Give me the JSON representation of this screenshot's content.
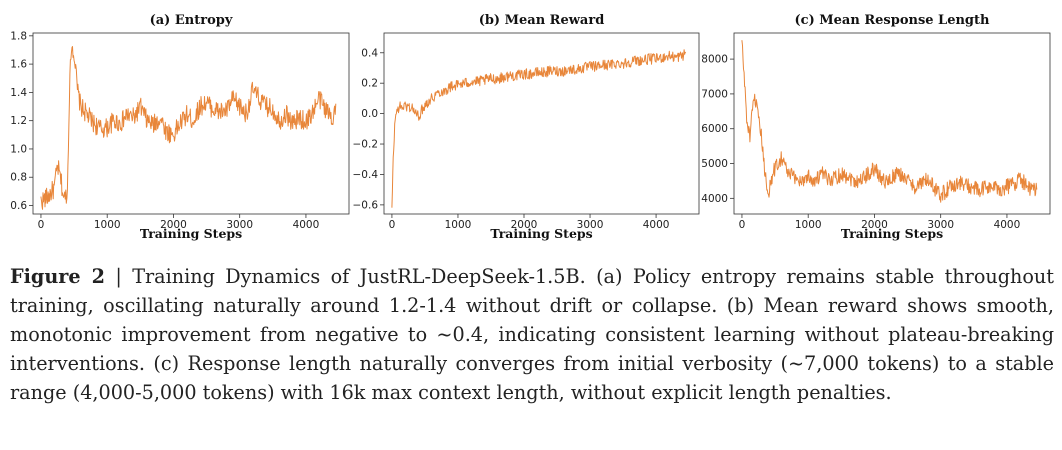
{
  "chart_data": [
    {
      "type": "line",
      "title": "(a) Entropy",
      "xlabel": "Training Steps",
      "ylabel": "",
      "xlim": [
        -120,
        4650
      ],
      "ylim": [
        0.54,
        1.82
      ],
      "x_ticks": [
        0,
        1000,
        2000,
        3000,
        4000
      ],
      "y_ticks": [
        0.6,
        0.8,
        1.0,
        1.2,
        1.4,
        1.6,
        1.8
      ],
      "y_tick_labels": [
        "0.6",
        "0.8",
        "1.0",
        "1.2",
        "1.4",
        "1.6",
        "1.8"
      ],
      "series": [
        {
          "name": "entropy",
          "color": "#e8863a",
          "x": [
            0,
            100,
            200,
            250,
            300,
            350,
            400,
            430,
            460,
            500,
            550,
            600,
            700,
            800,
            900,
            1000,
            1100,
            1200,
            1300,
            1400,
            1500,
            1600,
            1700,
            1800,
            1900,
            2000,
            2100,
            2200,
            2300,
            2400,
            2500,
            2600,
            2700,
            2800,
            2900,
            3000,
            3100,
            3200,
            3300,
            3400,
            3500,
            3600,
            3700,
            3800,
            3900,
            4000,
            4100,
            4200,
            4300,
            4400,
            4450
          ],
          "values": [
            0.63,
            0.66,
            0.72,
            0.88,
            0.78,
            0.64,
            0.7,
            1.4,
            1.74,
            1.68,
            1.42,
            1.3,
            1.24,
            1.18,
            1.14,
            1.15,
            1.2,
            1.18,
            1.24,
            1.22,
            1.3,
            1.2,
            1.17,
            1.22,
            1.12,
            1.1,
            1.18,
            1.24,
            1.2,
            1.3,
            1.33,
            1.28,
            1.26,
            1.27,
            1.35,
            1.3,
            1.25,
            1.42,
            1.35,
            1.3,
            1.28,
            1.2,
            1.25,
            1.18,
            1.22,
            1.19,
            1.26,
            1.36,
            1.28,
            1.22,
            1.32
          ]
        }
      ]
    },
    {
      "type": "line",
      "title": "(b) Mean Reward",
      "xlabel": "Training Steps",
      "ylabel": "",
      "xlim": [
        -120,
        4650
      ],
      "ylim": [
        -0.66,
        0.53
      ],
      "x_ticks": [
        0,
        1000,
        2000,
        3000,
        4000
      ],
      "y_ticks": [
        -0.6,
        -0.4,
        -0.2,
        0.0,
        0.2,
        0.4
      ],
      "y_tick_labels": [
        "−0.6",
        "−0.4",
        "−0.2",
        "0.0",
        "0.2",
        "0.4"
      ],
      "series": [
        {
          "name": "mean reward",
          "color": "#e8863a",
          "x": [
            0,
            20,
            50,
            100,
            200,
            300,
            400,
            500,
            600,
            700,
            800,
            900,
            1000,
            1100,
            1200,
            1300,
            1400,
            1500,
            1600,
            1700,
            1800,
            1900,
            2000,
            2100,
            2200,
            2300,
            2400,
            2500,
            2600,
            2700,
            2800,
            2900,
            3000,
            3100,
            3200,
            3300,
            3400,
            3500,
            3600,
            3700,
            3800,
            3900,
            4000,
            4100,
            4200,
            4300,
            4400,
            4450
          ],
          "values": [
            -0.63,
            -0.3,
            -0.02,
            0.04,
            0.05,
            0.04,
            -0.02,
            0.06,
            0.1,
            0.14,
            0.15,
            0.18,
            0.19,
            0.2,
            0.21,
            0.21,
            0.22,
            0.23,
            0.23,
            0.24,
            0.25,
            0.25,
            0.26,
            0.26,
            0.27,
            0.27,
            0.28,
            0.28,
            0.28,
            0.29,
            0.29,
            0.3,
            0.31,
            0.31,
            0.32,
            0.32,
            0.33,
            0.33,
            0.34,
            0.35,
            0.35,
            0.36,
            0.36,
            0.37,
            0.38,
            0.37,
            0.38,
            0.4
          ]
        }
      ]
    },
    {
      "type": "line",
      "title": "(c) Mean Response Length",
      "xlabel": "Training Steps",
      "ylabel": "",
      "xlim": [
        -120,
        4650
      ],
      "ylim": [
        3550,
        8750
      ],
      "x_ticks": [
        0,
        1000,
        2000,
        3000,
        4000
      ],
      "y_ticks": [
        4000,
        5000,
        6000,
        7000,
        8000
      ],
      "y_tick_labels": [
        "4000",
        "5000",
        "6000",
        "7000",
        "8000"
      ],
      "series": [
        {
          "name": "response length",
          "color": "#e8863a",
          "x": [
            0,
            40,
            80,
            120,
            160,
            200,
            250,
            300,
            350,
            400,
            500,
            600,
            700,
            800,
            900,
            1000,
            1100,
            1200,
            1300,
            1400,
            1500,
            1600,
            1700,
            1800,
            1900,
            2000,
            2100,
            2200,
            2300,
            2400,
            2500,
            2600,
            2700,
            2800,
            2900,
            3000,
            3100,
            3200,
            3300,
            3400,
            3500,
            3600,
            3700,
            3800,
            3900,
            4000,
            4100,
            4200,
            4300,
            4400,
            4450
          ],
          "values": [
            8500,
            7300,
            6100,
            5800,
            6500,
            6900,
            6200,
            5700,
            4600,
            4200,
            4900,
            5200,
            4700,
            4600,
            4500,
            4650,
            4500,
            4700,
            4550,
            4600,
            4700,
            4650,
            4500,
            4550,
            4700,
            4850,
            4600,
            4450,
            4650,
            4700,
            4500,
            4350,
            4400,
            4550,
            4300,
            4100,
            4250,
            4400,
            4450,
            4350,
            4300,
            4200,
            4350,
            4300,
            4250,
            4350,
            4400,
            4600,
            4350,
            4200,
            4250
          ]
        }
      ]
    }
  ],
  "caption": {
    "label": "Figure 2",
    "text": " | Training Dynamics of JustRL-DeepSeek-1.5B. (a) Policy entropy remains stable throughout training, oscillating naturally around 1.2-1.4 without drift or collapse.  (b) Mean reward shows smooth, monotonic improvement from negative to ~0.4, indicating consistent learning without plateau-breaking interventions. (c) Response length naturally converges from initial verbosity (~7,000 tokens) to a stable range (4,000-5,000 tokens) with 16k max context length, without explicit length penalties."
  }
}
